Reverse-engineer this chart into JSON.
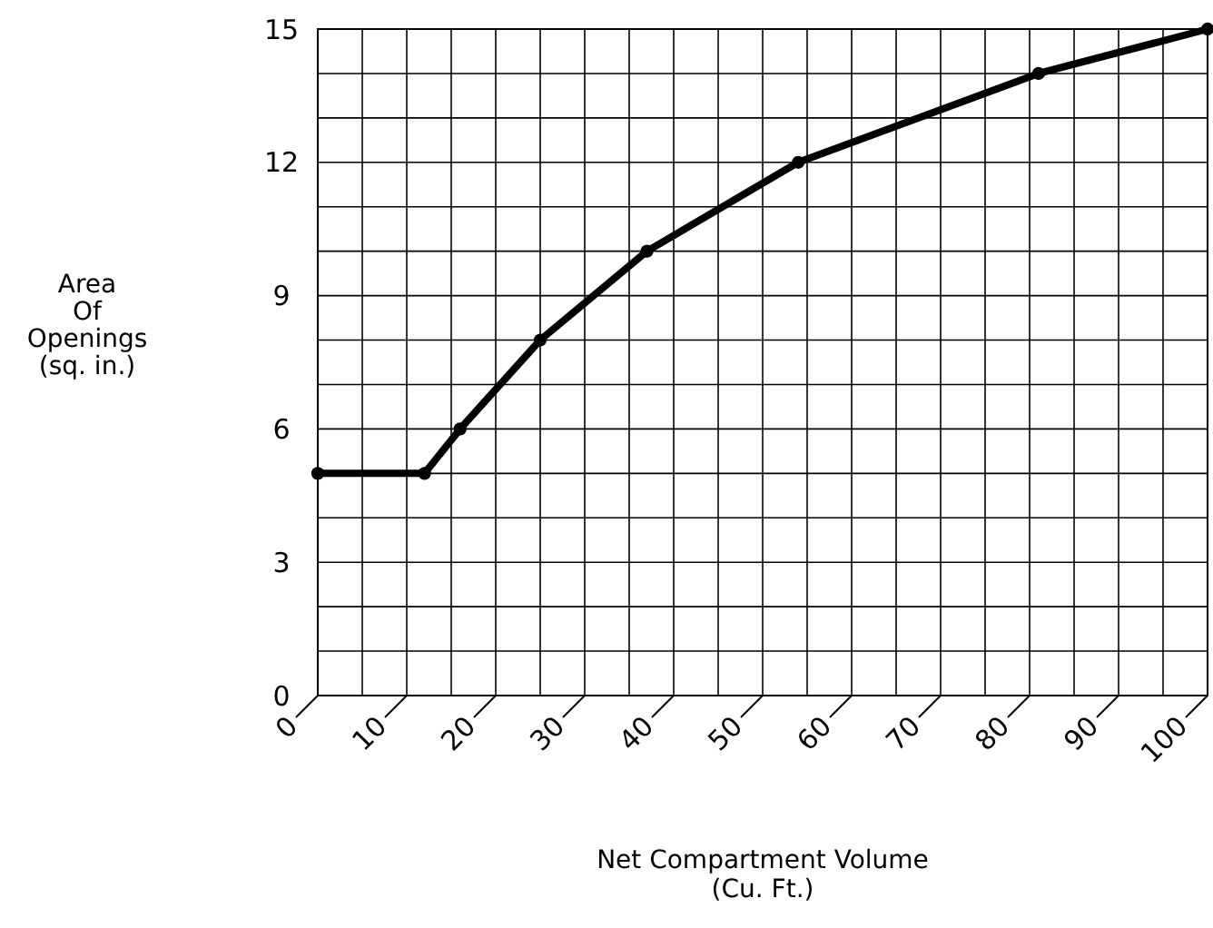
{
  "chart_data": {
    "type": "line",
    "xlabel": "Net Compartment Volume\n(Cu. Ft.)",
    "ylabel": "Area\nOf\nOpenings\n(sq. in.)",
    "x": [
      0,
      12,
      16,
      25,
      37,
      54,
      81,
      100
    ],
    "series": [
      {
        "color": "#000000",
        "values": [
          5,
          5,
          6,
          8,
          10,
          12,
          14,
          15
        ]
      }
    ],
    "xlim": [
      0,
      100
    ],
    "xticks": [
      0,
      {
        "value": 5,
        "label": null
      },
      10,
      {
        "value": 15,
        "label": null
      },
      20,
      {
        "value": 25,
        "label": null
      },
      30,
      {
        "value": 35,
        "label": null
      },
      40,
      {
        "value": 45,
        "label": null
      },
      50,
      {
        "value": 55,
        "label": null
      },
      60,
      {
        "value": 65,
        "label": null
      },
      70,
      {
        "value": 75,
        "label": null
      },
      80,
      {
        "value": 85,
        "label": null
      },
      90,
      {
        "value": 95,
        "label": null
      },
      100
    ],
    "ylim": [
      0,
      15
    ],
    "yticks": [
      0,
      {
        "value": 1,
        "label": null
      },
      {
        "value": 2,
        "label": null
      },
      3,
      {
        "value": 4,
        "label": null
      },
      {
        "value": 5,
        "label": null
      },
      6,
      {
        "value": 7,
        "label": null
      },
      {
        "value": 8,
        "label": null
      },
      9,
      {
        "value": 10,
        "label": null
      },
      {
        "value": 11,
        "label": null
      },
      12,
      {
        "value": 13,
        "label": null
      },
      {
        "value": 14,
        "label": null
      },
      15
    ],
    "grid": true,
    "marker": "circle",
    "line_style": "solid"
  }
}
